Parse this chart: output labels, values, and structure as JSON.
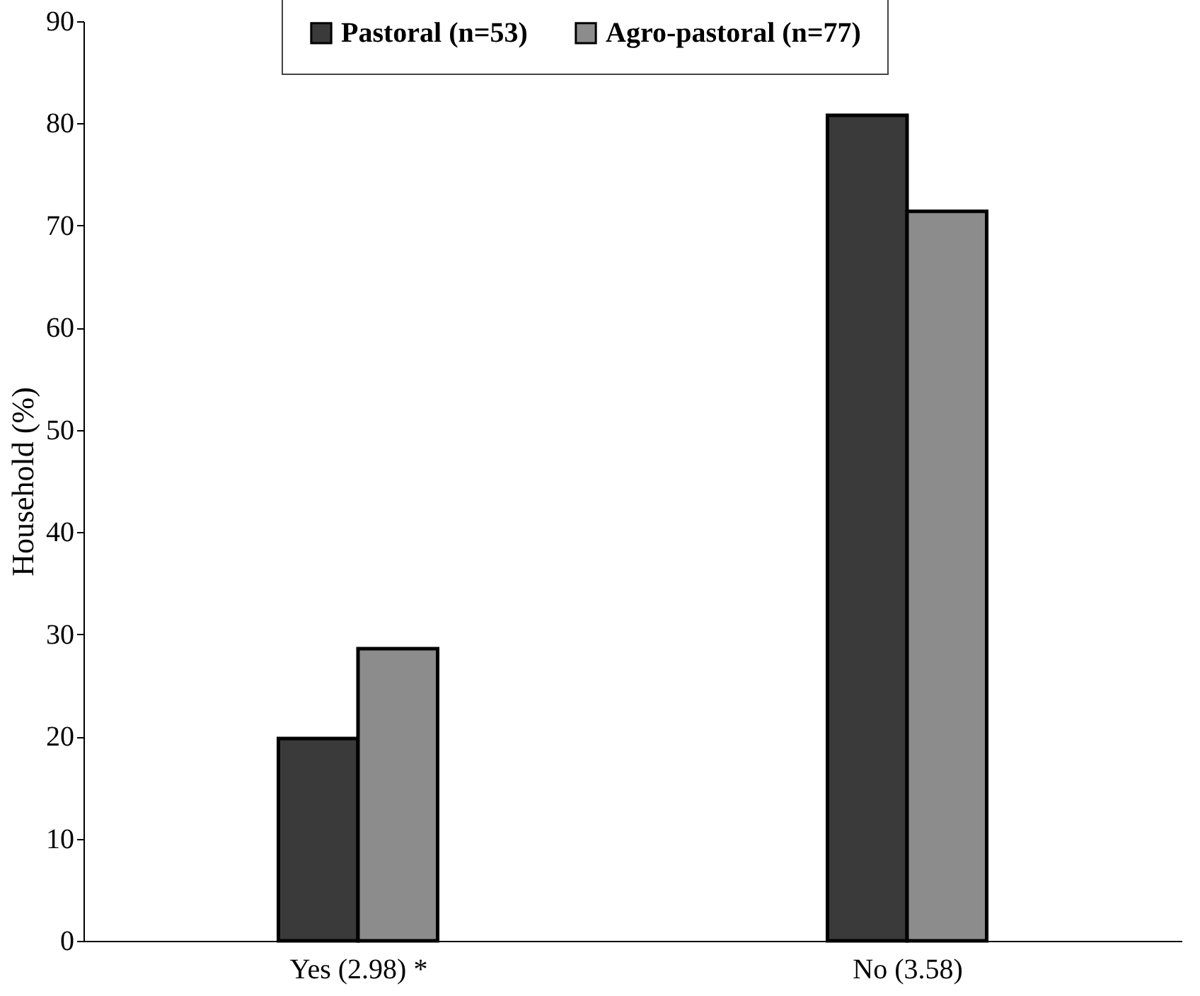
{
  "chart_data": {
    "type": "bar",
    "ylabel": "Household (%)",
    "categories": [
      "Yes (2.98) *",
      "No (3.58)"
    ],
    "series": [
      {
        "name": "Pastoral (n=53)",
        "color": "#3a3a3a",
        "values": [
          19.8,
          80.8
        ]
      },
      {
        "name": "Agro-pastoral (n=77)",
        "color": "#8c8c8c",
        "values": [
          28.6,
          71.4
        ]
      }
    ],
    "ylim": [
      0,
      90
    ],
    "yticks": [
      0,
      10,
      20,
      30,
      40,
      50,
      60,
      70,
      80,
      90
    ],
    "grid": false,
    "legend": "top"
  }
}
